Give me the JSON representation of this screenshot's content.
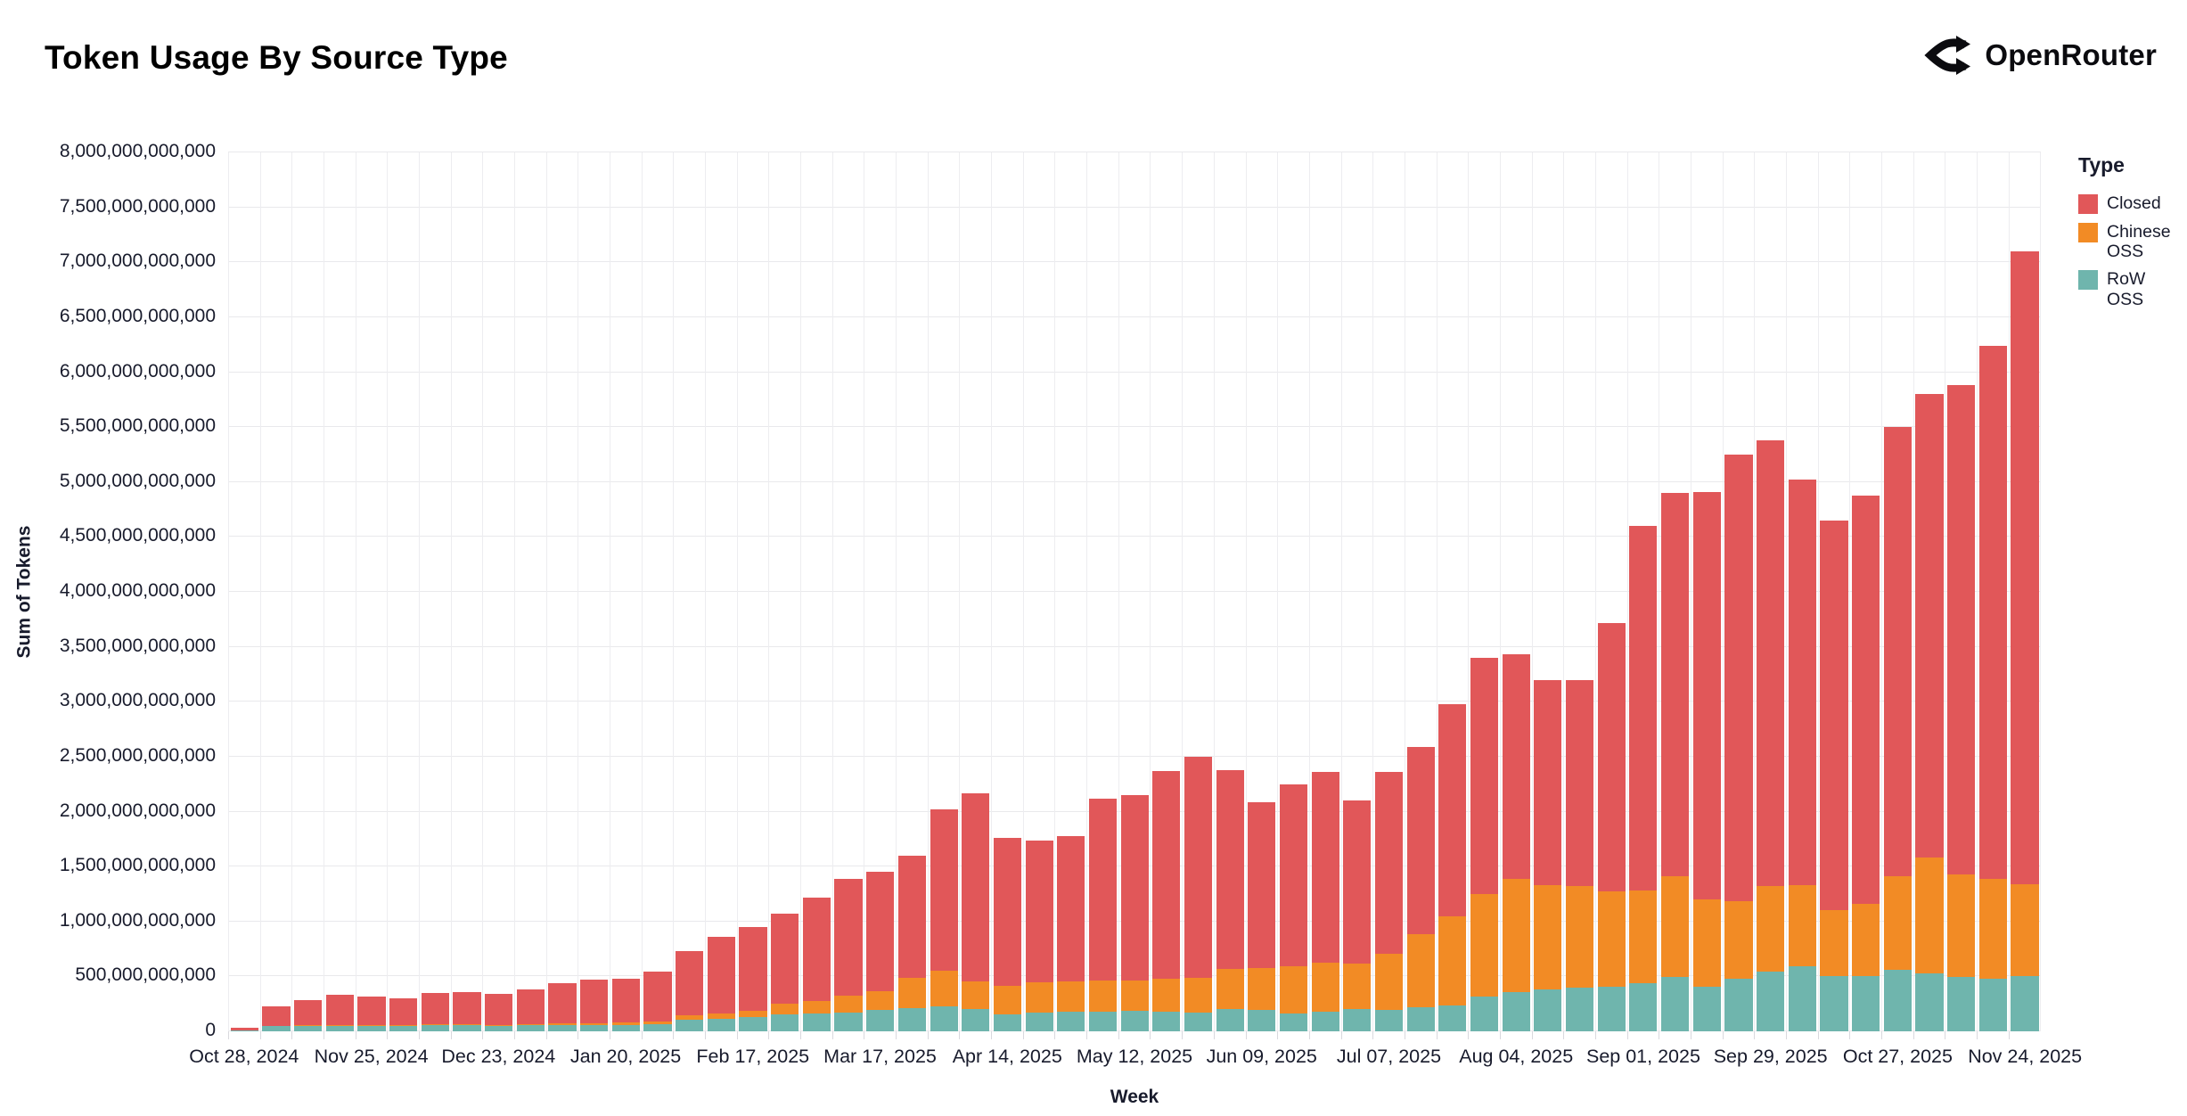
{
  "header": {
    "title": "Token Usage By Source Type",
    "brand": {
      "name": "OpenRouter",
      "icon": "openrouter-fork-icon",
      "color": "#0b0b0f"
    }
  },
  "legend": {
    "title": "Type",
    "items": [
      {
        "label": "Closed",
        "color": "#e15759"
      },
      {
        "label": "Chinese OSS",
        "color": "#f28b25"
      },
      {
        "label": "RoW OSS",
        "color": "#6fb5ad"
      }
    ]
  },
  "chart_data": {
    "type": "bar",
    "stacked": true,
    "title": "Token Usage By Source Type",
    "xlabel": "Week",
    "ylabel": "Sum of Tokens",
    "unit": "billions of tokens (1 = 1,000,000,000 tokens)",
    "ylim_billions": [
      0,
      8000
    ],
    "grid": true,
    "legend_position": "right",
    "y_tick_labels": [
      "0",
      "500,000,000,000",
      "1,000,000,000,000",
      "1,500,000,000,000",
      "2,000,000,000,000",
      "2,500,000,000,000",
      "3,000,000,000,000",
      "3,500,000,000,000",
      "4,000,000,000,000",
      "4,500,000,000,000",
      "5,000,000,000,000",
      "5,500,000,000,000",
      "6,000,000,000,000",
      "6,500,000,000,000",
      "7,000,000,000,000",
      "7,500,000,000,000",
      "8,000,000,000,000"
    ],
    "y_tick_values_billions": [
      0,
      500,
      1000,
      1500,
      2000,
      2500,
      3000,
      3500,
      4000,
      4500,
      5000,
      5500,
      6000,
      6500,
      7000,
      7500,
      8000
    ],
    "x_tick_labels": [
      "Oct 28, 2024",
      "Nov 25, 2024",
      "Dec 23, 2024",
      "Jan 20, 2025",
      "Feb 17, 2025",
      "Mar 17, 2025",
      "Apr 14, 2025",
      "May 12, 2025",
      "Jun 09, 2025",
      "Jul 07, 2025",
      "Aug 04, 2025",
      "Sep 01, 2025",
      "Sep 29, 2025",
      "Oct 27, 2025",
      "Nov 24, 2025"
    ],
    "x_tick_every": 4,
    "categories": [
      "Oct 28, 2024",
      "Nov 04, 2024",
      "Nov 11, 2024",
      "Nov 18, 2024",
      "Nov 25, 2024",
      "Dec 02, 2024",
      "Dec 09, 2024",
      "Dec 16, 2024",
      "Dec 23, 2024",
      "Dec 30, 2024",
      "Jan 06, 2025",
      "Jan 13, 2025",
      "Jan 20, 2025",
      "Jan 27, 2025",
      "Feb 03, 2025",
      "Feb 10, 2025",
      "Feb 17, 2025",
      "Feb 24, 2025",
      "Mar 03, 2025",
      "Mar 10, 2025",
      "Mar 17, 2025",
      "Mar 24, 2025",
      "Mar 31, 2025",
      "Apr 07, 2025",
      "Apr 14, 2025",
      "Apr 21, 2025",
      "Apr 28, 2025",
      "May 05, 2025",
      "May 12, 2025",
      "May 19, 2025",
      "May 26, 2025",
      "Jun 02, 2025",
      "Jun 09, 2025",
      "Jun 16, 2025",
      "Jun 23, 2025",
      "Jun 30, 2025",
      "Jul 07, 2025",
      "Jul 14, 2025",
      "Jul 21, 2025",
      "Jul 28, 2025",
      "Aug 04, 2025",
      "Aug 11, 2025",
      "Aug 18, 2025",
      "Aug 25, 2025",
      "Sep 01, 2025",
      "Sep 08, 2025",
      "Sep 15, 2025",
      "Sep 22, 2025",
      "Sep 29, 2025",
      "Oct 06, 2025",
      "Oct 13, 2025",
      "Oct 20, 2025",
      "Oct 27, 2025",
      "Nov 03, 2025",
      "Nov 10, 2025",
      "Nov 17, 2025",
      "Nov 24, 2025"
    ],
    "series": [
      {
        "name": "RoW OSS",
        "color": "#6fb5ad",
        "values_billions": [
          8,
          45,
          48,
          52,
          50,
          48,
          55,
          55,
          52,
          55,
          55,
          58,
          60,
          65,
          105,
          111,
          128,
          152,
          160,
          173,
          193,
          214,
          228,
          206,
          155,
          173,
          181,
          181,
          187,
          181,
          173,
          204,
          198,
          163,
          182,
          204,
          195,
          222,
          236,
          320,
          356,
          383,
          396,
          409,
          437,
          491,
          409,
          478,
          545,
          594,
          505,
          505,
          560,
          530,
          495,
          480,
          500
        ]
      },
      {
        "name": "Chinese OSS",
        "color": "#f28b25",
        "values_billions": [
          2,
          5,
          6,
          8,
          8,
          7,
          9,
          9,
          9,
          12,
          15,
          17,
          20,
          25,
          42,
          54,
          59,
          98,
          114,
          150,
          171,
          272,
          325,
          252,
          262,
          272,
          277,
          283,
          279,
          297,
          313,
          366,
          380,
          426,
          442,
          412,
          511,
          665,
          814,
          931,
          1030,
          949,
          925,
          869,
          849,
          923,
          796,
          705,
          774,
          739,
          600,
          655,
          850,
          1050,
          930,
          910,
          840
        ]
      },
      {
        "name": "Closed",
        "color": "#e15759",
        "values_billions": [
          20,
          180,
          231,
          270,
          257,
          245,
          286,
          291,
          279,
          313,
          370,
          395,
          400,
          450,
          583,
          695,
          763,
          820,
          946,
          1067,
          1086,
          1114,
          1467,
          1712,
          1343,
          1295,
          1322,
          1656,
          1684,
          1892,
          2014,
          1810,
          1507,
          1661,
          1736,
          1484,
          1654,
          1703,
          1930,
          2149,
          2044,
          1868,
          1879,
          2442,
          3314,
          3486,
          3705,
          4067,
          4061,
          3687,
          3545,
          3720,
          4090,
          4220,
          4455,
          4850,
          5760
        ]
      }
    ]
  }
}
